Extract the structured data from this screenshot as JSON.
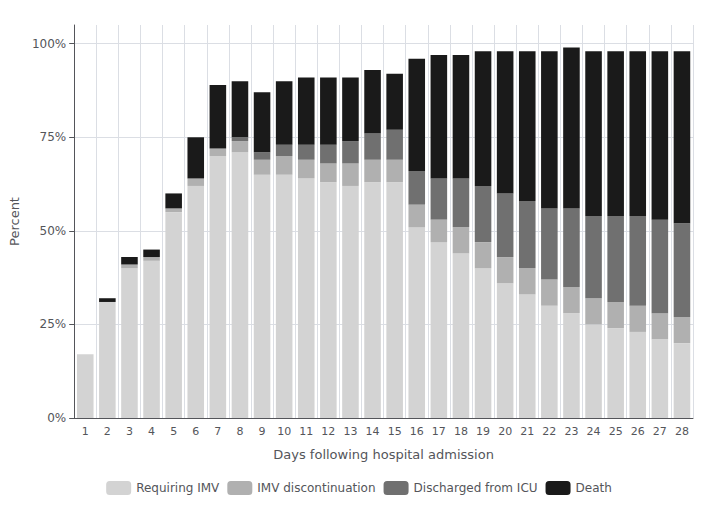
{
  "chart_data": {
    "type": "bar",
    "stacked": true,
    "grid": true,
    "legend": "bottom",
    "xlabel": "Days following hospital admission",
    "ylabel": "Percent",
    "categories": [
      1,
      2,
      3,
      4,
      5,
      6,
      7,
      8,
      9,
      10,
      11,
      12,
      13,
      14,
      15,
      16,
      17,
      18,
      19,
      20,
      21,
      22,
      23,
      24,
      25,
      26,
      27,
      28
    ],
    "series": [
      {
        "name": "Requiring IMV",
        "color": "#d3d3d3",
        "values": [
          17,
          31,
          40,
          42,
          55,
          62,
          70,
          71,
          65,
          65,
          64,
          63,
          62,
          63,
          63,
          51,
          47,
          44,
          40,
          36,
          33,
          30,
          28,
          25,
          24,
          23,
          21,
          20
        ]
      },
      {
        "name": "IMV discontinuation",
        "color": "#b0b0b0",
        "values": [
          0,
          0,
          1,
          1,
          1,
          2,
          2,
          3,
          4,
          5,
          5,
          5,
          6,
          6,
          6,
          6,
          6,
          7,
          7,
          7,
          7,
          7,
          7,
          7,
          7,
          7,
          7,
          7
        ]
      },
      {
        "name": "Discharged from ICU",
        "color": "#707070",
        "values": [
          0,
          0,
          0,
          0,
          0,
          0,
          0,
          1,
          2,
          3,
          4,
          5,
          6,
          7,
          8,
          9,
          11,
          13,
          15,
          17,
          18,
          19,
          21,
          22,
          23,
          24,
          25,
          25
        ]
      },
      {
        "name": "Death",
        "color": "#1a1a1a",
        "values": [
          0,
          1,
          2,
          2,
          4,
          11,
          17,
          15,
          16,
          17,
          18,
          18,
          17,
          17,
          15,
          30,
          33,
          33,
          36,
          38,
          40,
          42,
          43,
          44,
          44,
          44,
          45,
          46
        ]
      }
    ],
    "ylim": [
      0,
      105
    ],
    "yticks": [
      {
        "value": 0,
        "label": "0%"
      },
      {
        "value": 25,
        "label": "25%"
      },
      {
        "value": 50,
        "label": "50%"
      },
      {
        "value": 75,
        "label": "75%"
      },
      {
        "value": 100,
        "label": "100%"
      }
    ]
  }
}
